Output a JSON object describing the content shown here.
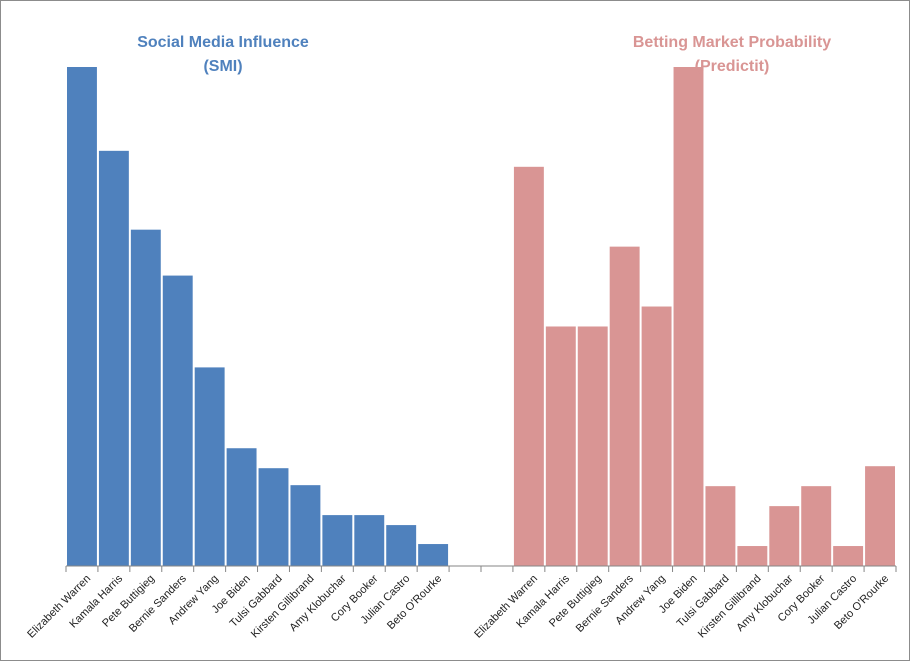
{
  "chart_data": {
    "type": "bar",
    "categories": [
      "Elizabeth Warren",
      "Kamala Harris",
      "Pete Buttigieg",
      "Bernie Sanders",
      "Andrew Yang",
      "Joe Biden",
      "Tulsi Gabbard",
      "Kirsten Gillibrand",
      "Amy Klobuchar",
      "Cory Booker",
      "Julian Castro",
      "Beto O'Rourke",
      "",
      "",
      "Elizabeth Warren",
      "Kamala Harris",
      "Pete Buttigieg",
      "Bernie Sanders",
      "Andrew Yang",
      "Joe Biden",
      "Tulsi Gabbard",
      "Kirsten Gillibrand",
      "Amy Klobuchar",
      "Cory Booker",
      "Julian Castro",
      "Beto O'Rourke"
    ],
    "series": [
      {
        "group": "smi",
        "color": "#4f81bd",
        "values": [
          100,
          83.2,
          67.4,
          58.2,
          39.8,
          23.6,
          19.6,
          16.2,
          10.2,
          10.2,
          8.2,
          4.4,
          null,
          null,
          null,
          null,
          null,
          null,
          null,
          null,
          null,
          null,
          null,
          null,
          null,
          null
        ]
      },
      {
        "group": "predictit",
        "color": "#d99594",
        "values": [
          null,
          null,
          null,
          null,
          null,
          null,
          null,
          null,
          null,
          null,
          null,
          null,
          null,
          null,
          80,
          48,
          48,
          64,
          52,
          100,
          16,
          4,
          12,
          16,
          4,
          20
        ]
      }
    ],
    "titles": [
      {
        "lines": [
          "Social Media Influence",
          "(SMI)"
        ],
        "color": "#4f81bd"
      },
      {
        "lines": [
          "Betting Market Probability",
          "(Predictit)"
        ],
        "color": "#d99594"
      }
    ],
    "ylim": [
      0,
      100
    ],
    "grid": false,
    "legend": "none",
    "tick_label_rotation": -45
  }
}
